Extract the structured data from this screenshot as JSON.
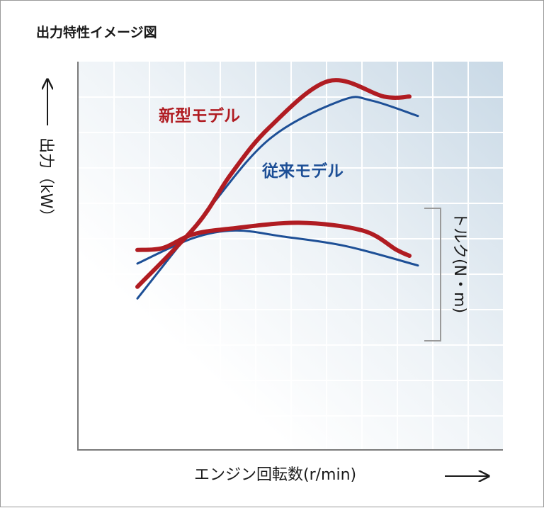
{
  "chart_data": {
    "type": "line",
    "title": "出力特性イメージ図",
    "ylabel": "出力（kW）",
    "y2label": "トルク(N・m)",
    "xlabel": "エンジン回転数(r/min)",
    "grid": true,
    "axis_ticks": "none (illustrative image)",
    "colors": {
      "new": "#b01c22",
      "old": "#1d4f96"
    },
    "series": [
      {
        "name": "新型モデル",
        "group": "output",
        "color": "#b01c22",
        "points": [
          [
            0.14,
            0.42
          ],
          [
            0.28,
            0.58
          ],
          [
            0.36,
            0.71
          ],
          [
            0.45,
            0.83
          ],
          [
            0.59,
            0.95
          ],
          [
            0.72,
            0.91
          ],
          [
            0.78,
            0.91
          ]
        ]
      },
      {
        "name": "従来モデル",
        "group": "output",
        "color": "#1d4f96",
        "points": [
          [
            0.14,
            0.39
          ],
          [
            0.3,
            0.61
          ],
          [
            0.45,
            0.8
          ],
          [
            0.62,
            0.9
          ],
          [
            0.69,
            0.9
          ],
          [
            0.8,
            0.86
          ]
        ]
      },
      {
        "name": "新型モデル",
        "group": "torque",
        "color": "#b01c22",
        "points": [
          [
            0.14,
            0.515
          ],
          [
            0.2,
            0.52
          ],
          [
            0.27,
            0.555
          ],
          [
            0.36,
            0.57
          ],
          [
            0.52,
            0.585
          ],
          [
            0.67,
            0.565
          ],
          [
            0.75,
            0.515
          ],
          [
            0.78,
            0.5
          ]
        ]
      },
      {
        "name": "従来モデル",
        "group": "torque",
        "color": "#1d4f96",
        "points": [
          [
            0.14,
            0.48
          ],
          [
            0.27,
            0.545
          ],
          [
            0.37,
            0.565
          ],
          [
            0.48,
            0.55
          ],
          [
            0.63,
            0.525
          ],
          [
            0.8,
            0.475
          ]
        ]
      }
    ]
  },
  "labels": {
    "title": "出力特性イメージ図",
    "y_axis": "出力（kW）",
    "torque_axis": "トルク(N・m)",
    "x_axis": "エンジン回転数(r/min)",
    "series_new": "新型モデル",
    "series_old": "従来モデル"
  }
}
